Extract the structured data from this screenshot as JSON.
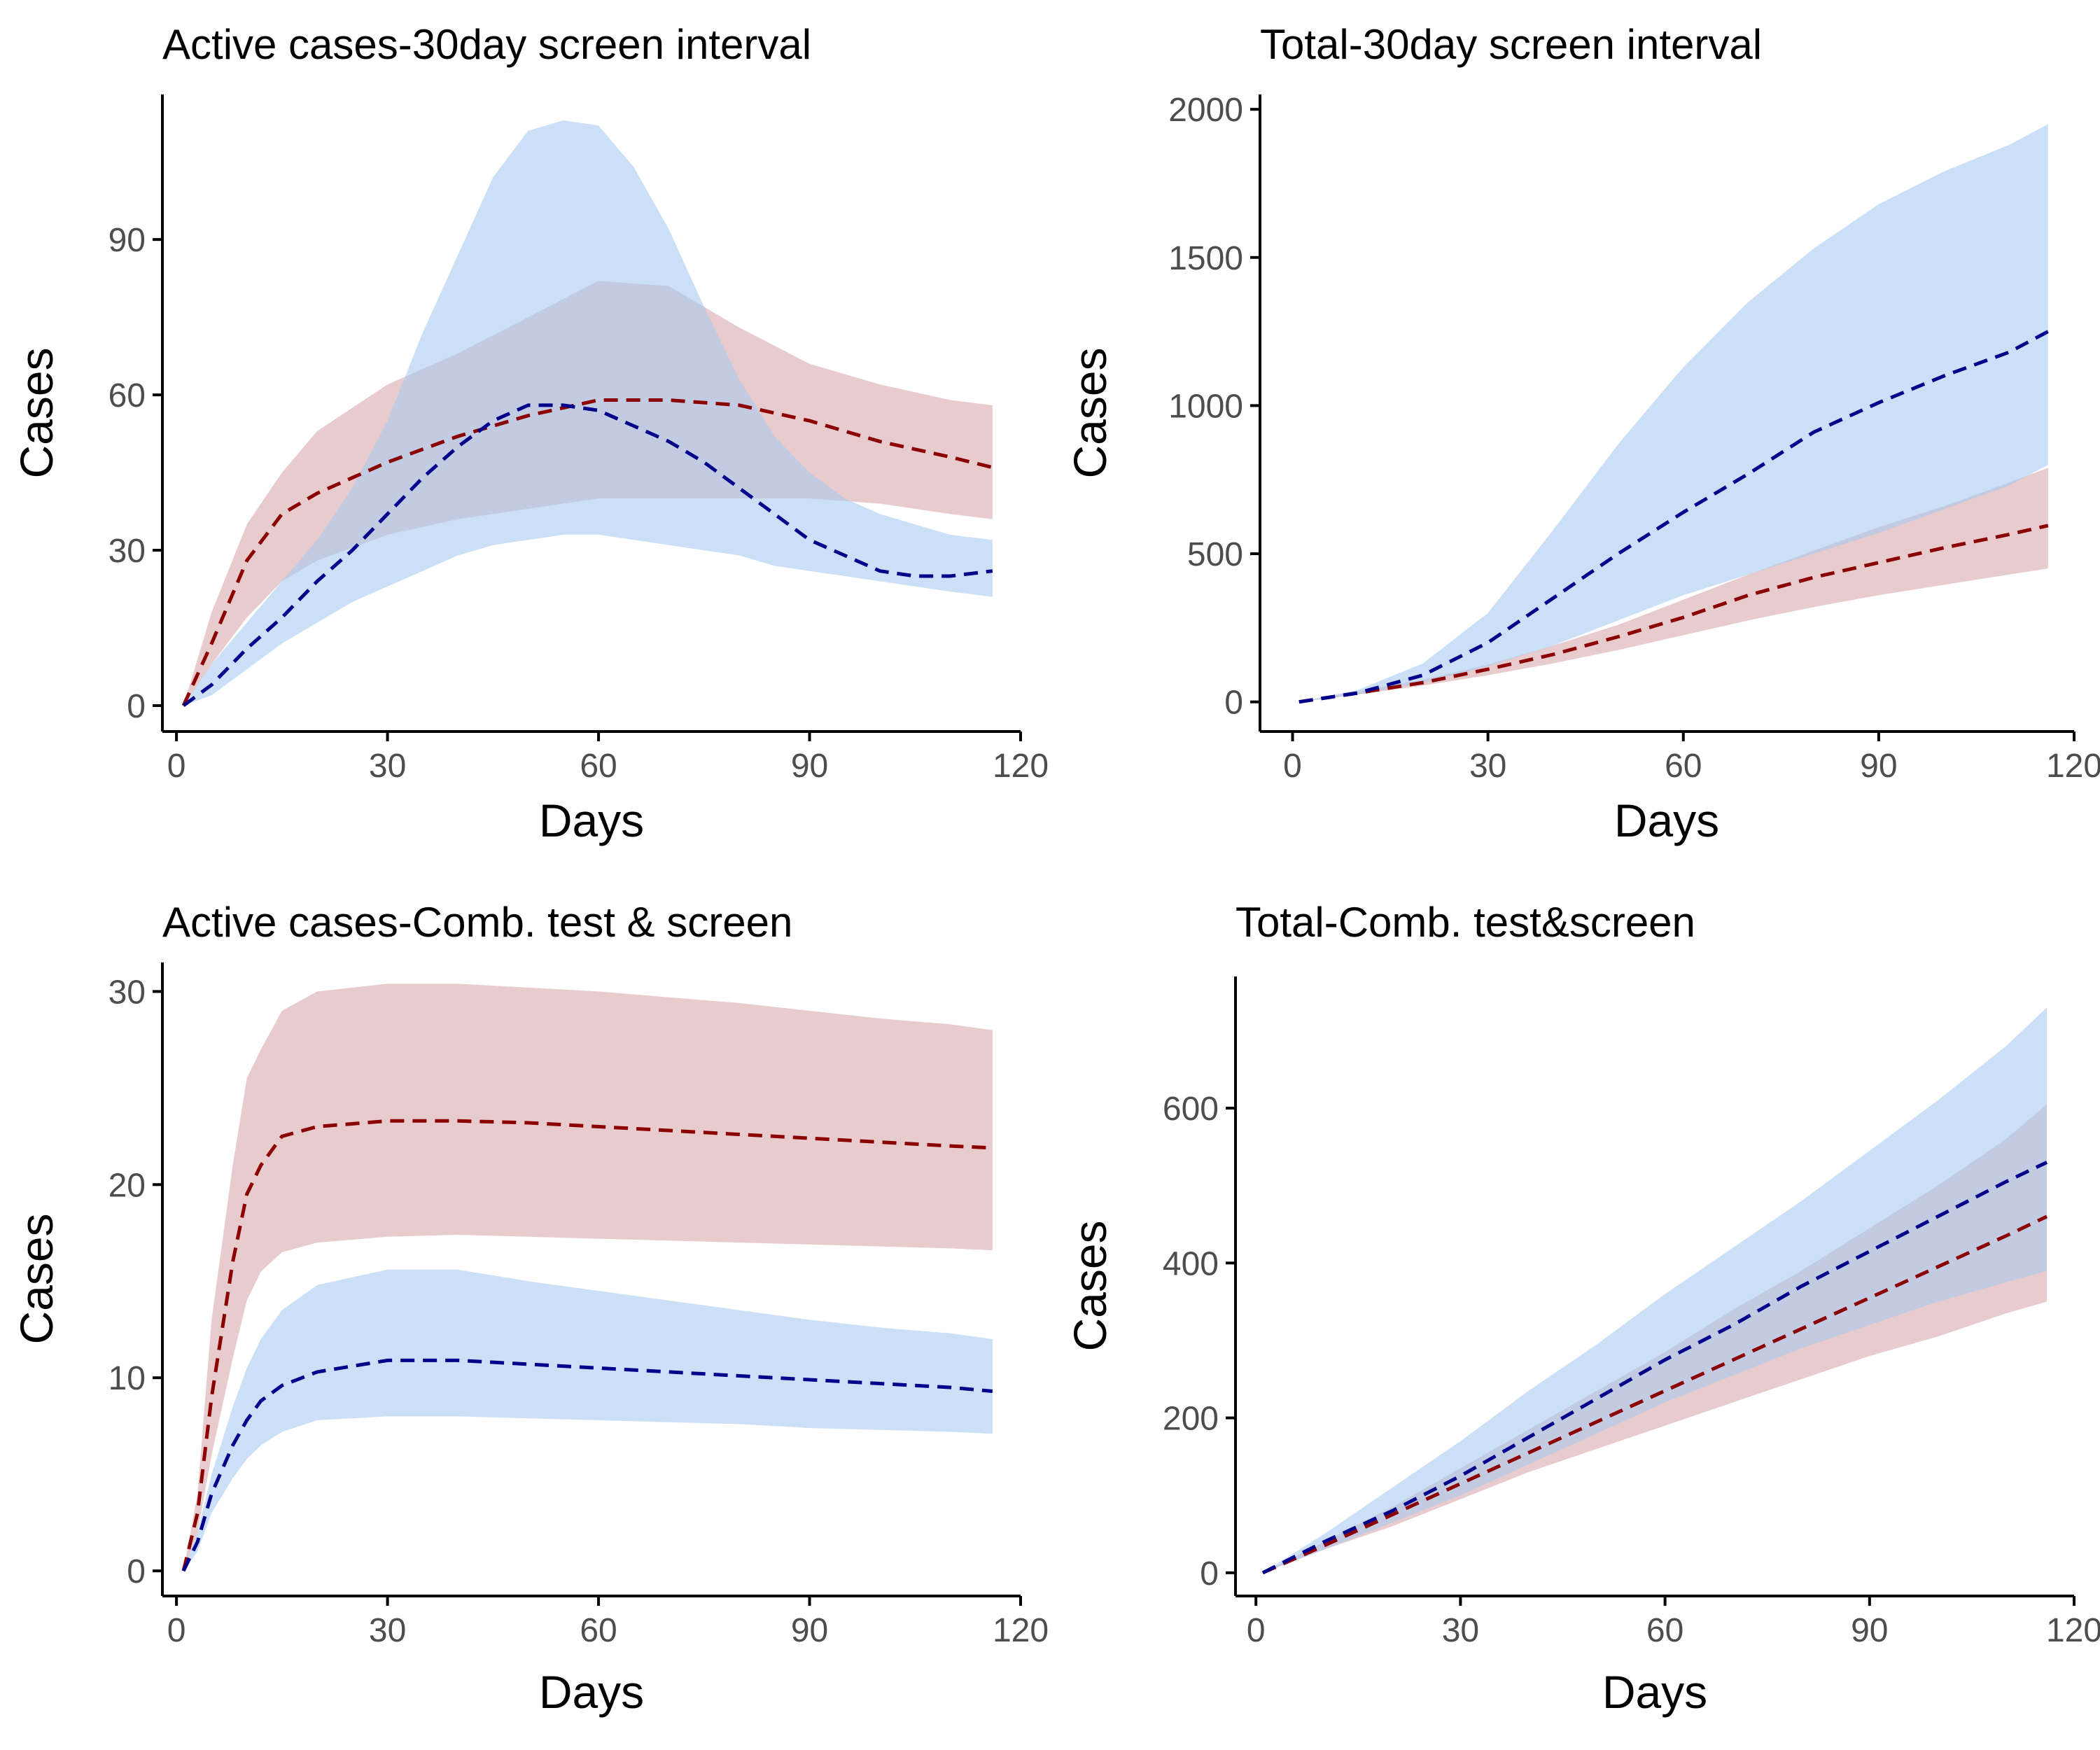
{
  "colors": {
    "red_band": "#d8a8ab",
    "blue_band": "#a9cbf0",
    "red_line": "#8b0000",
    "blue_line": "#00008b"
  },
  "chart_data": [
    {
      "type": "area",
      "title": "Active cases-30day screen interval",
      "xlabel": "Days",
      "ylabel": "Cases",
      "xlim": [
        -2,
        120
      ],
      "ylim": [
        -5,
        118
      ],
      "xticks": [
        0,
        30,
        60,
        90,
        120
      ],
      "yticks": [
        0,
        30,
        60,
        90
      ],
      "grid": false,
      "series": [
        {
          "color": "red",
          "x": [
            1,
            5,
            10,
            15,
            20,
            30,
            40,
            50,
            60,
            70,
            80,
            90,
            100,
            110,
            116
          ],
          "mean": [
            0,
            12,
            28,
            37,
            41,
            47,
            52,
            56,
            59,
            59,
            58,
            55,
            51,
            48,
            46
          ],
          "lower": [
            0,
            8,
            17,
            24,
            28,
            33,
            36,
            38,
            40,
            40,
            40,
            40,
            39,
            37,
            36
          ],
          "upper": [
            0,
            18,
            35,
            45,
            53,
            62,
            68,
            75,
            82,
            81,
            73,
            66,
            62,
            59,
            58
          ]
        },
        {
          "color": "blue",
          "x": [
            1,
            5,
            10,
            15,
            20,
            25,
            30,
            35,
            40,
            45,
            50,
            55,
            60,
            65,
            70,
            75,
            80,
            85,
            90,
            95,
            100,
            105,
            110,
            116
          ],
          "mean": [
            0,
            4,
            11,
            17,
            24,
            30,
            37,
            44,
            50,
            55,
            58,
            58,
            57,
            54,
            51,
            47,
            42,
            37,
            32,
            29,
            26,
            25,
            25,
            26
          ],
          "lower": [
            0,
            2,
            7,
            12,
            16,
            20,
            23,
            26,
            29,
            31,
            32,
            33,
            33,
            32,
            31,
            30,
            29,
            27,
            26,
            25,
            24,
            23,
            22,
            21
          ],
          "upper": [
            0,
            8,
            16,
            24,
            32,
            42,
            55,
            72,
            87,
            102,
            111,
            113,
            112,
            104,
            92,
            77,
            63,
            52,
            45,
            40,
            37,
            35,
            33,
            32
          ]
        }
      ]
    },
    {
      "type": "area",
      "title": "Total-30day screen interval",
      "xlabel": "Days",
      "ylabel": "Cases",
      "xlim": [
        -5,
        120
      ],
      "ylim": [
        -100,
        2050
      ],
      "xticks": [
        0,
        30,
        60,
        90,
        120
      ],
      "yticks": [
        0,
        500,
        1000,
        1500,
        2000
      ],
      "grid": false,
      "series": [
        {
          "color": "red",
          "x": [
            1,
            10,
            20,
            30,
            40,
            50,
            60,
            70,
            80,
            90,
            100,
            110,
            116
          ],
          "mean": [
            0,
            30,
            65,
            110,
            160,
            220,
            285,
            360,
            420,
            470,
            520,
            565,
            595
          ],
          "lower": [
            0,
            25,
            55,
            90,
            130,
            175,
            225,
            275,
            320,
            360,
            395,
            430,
            450
          ],
          "upper": [
            0,
            35,
            75,
            125,
            190,
            260,
            345,
            430,
            510,
            590,
            660,
            740,
            790
          ]
        },
        {
          "color": "blue",
          "x": [
            1,
            10,
            20,
            30,
            40,
            50,
            60,
            70,
            80,
            90,
            100,
            110,
            116
          ],
          "mean": [
            0,
            30,
            90,
            200,
            350,
            500,
            640,
            770,
            910,
            1010,
            1100,
            1180,
            1250
          ],
          "lower": [
            0,
            25,
            65,
            120,
            190,
            275,
            360,
            430,
            500,
            570,
            650,
            730,
            800
          ],
          "upper": [
            0,
            40,
            130,
            300,
            580,
            870,
            1130,
            1350,
            1530,
            1680,
            1790,
            1880,
            1950
          ]
        }
      ]
    },
    {
      "type": "area",
      "title": "Active cases-Comb. test & screen",
      "xlabel": "Days",
      "ylabel": "Cases",
      "xlim": [
        -2,
        120
      ],
      "ylim": [
        -1.3,
        31.5
      ],
      "xticks": [
        0,
        30,
        60,
        90,
        120
      ],
      "yticks": [
        0,
        10,
        20,
        30
      ],
      "grid": false,
      "series": [
        {
          "color": "red",
          "x": [
            1,
            3,
            5,
            8,
            10,
            12,
            15,
            20,
            30,
            40,
            50,
            60,
            70,
            80,
            90,
            100,
            110,
            116
          ],
          "mean": [
            0,
            3,
            9,
            16,
            19.5,
            21,
            22.5,
            23,
            23.3,
            23.3,
            23.2,
            23,
            22.8,
            22.6,
            22.4,
            22.2,
            22,
            21.9
          ],
          "lower": [
            0,
            2,
            6,
            11,
            14,
            15.5,
            16.5,
            17,
            17.3,
            17.4,
            17.3,
            17.2,
            17.1,
            17,
            16.9,
            16.8,
            16.7,
            16.6
          ],
          "upper": [
            0,
            4,
            13,
            21,
            25.5,
            27,
            29,
            30,
            30.4,
            30.4,
            30.2,
            30,
            29.7,
            29.4,
            29,
            28.6,
            28.3,
            28
          ]
        },
        {
          "color": "blue",
          "x": [
            1,
            3,
            5,
            8,
            10,
            12,
            15,
            20,
            30,
            40,
            50,
            60,
            70,
            80,
            90,
            100,
            110,
            116
          ],
          "mean": [
            0,
            1.5,
            4,
            6.5,
            7.8,
            8.8,
            9.6,
            10.3,
            10.9,
            10.9,
            10.7,
            10.5,
            10.3,
            10.1,
            9.9,
            9.7,
            9.5,
            9.3
          ],
          "lower": [
            0,
            1,
            3,
            4.8,
            5.8,
            6.5,
            7.2,
            7.8,
            8,
            8,
            7.9,
            7.8,
            7.7,
            7.6,
            7.4,
            7.3,
            7.2,
            7.1
          ],
          "upper": [
            0,
            2,
            5,
            8.5,
            10.5,
            12,
            13.5,
            14.8,
            15.6,
            15.6,
            15,
            14.5,
            14,
            13.5,
            13,
            12.6,
            12.3,
            12
          ]
        }
      ]
    },
    {
      "type": "area",
      "title": "Total-Comb. test&screen",
      "xlabel": "Days",
      "ylabel": "Cases",
      "xlim": [
        -3,
        120
      ],
      "ylim": [
        -30,
        770
      ],
      "xticks": [
        0,
        30,
        60,
        90,
        120
      ],
      "yticks": [
        0,
        200,
        400,
        600
      ],
      "grid": false,
      "series": [
        {
          "color": "red",
          "x": [
            1,
            10,
            20,
            30,
            40,
            50,
            60,
            70,
            80,
            90,
            100,
            110,
            116
          ],
          "mean": [
            0,
            35,
            75,
            115,
            155,
            195,
            235,
            275,
            315,
            355,
            395,
            435,
            460
          ],
          "lower": [
            0,
            30,
            60,
            95,
            130,
            160,
            190,
            220,
            250,
            280,
            305,
            335,
            350
          ],
          "upper": [
            0,
            40,
            85,
            135,
            185,
            235,
            285,
            340,
            390,
            445,
            500,
            560,
            605
          ]
        },
        {
          "color": "blue",
          "x": [
            1,
            10,
            20,
            30,
            40,
            50,
            60,
            70,
            80,
            90,
            100,
            110,
            116
          ],
          "mean": [
            0,
            40,
            80,
            125,
            175,
            225,
            275,
            320,
            370,
            415,
            460,
            505,
            530
          ],
          "lower": [
            0,
            30,
            65,
            100,
            140,
            180,
            220,
            255,
            290,
            320,
            350,
            375,
            390
          ],
          "upper": [
            0,
            50,
            110,
            170,
            235,
            295,
            360,
            420,
            480,
            545,
            610,
            680,
            730
          ]
        }
      ]
    }
  ]
}
